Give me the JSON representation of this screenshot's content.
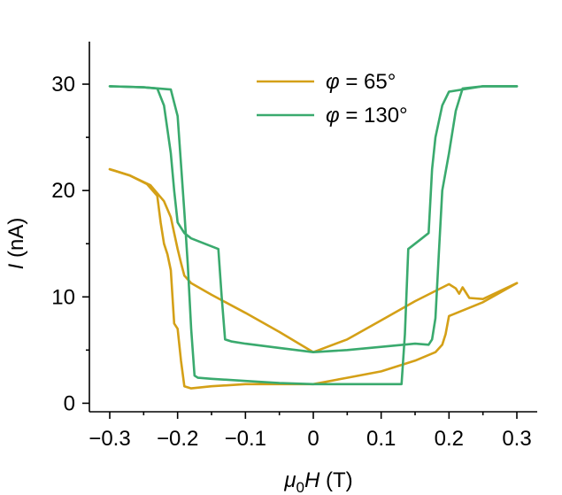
{
  "chart_data": {
    "type": "line",
    "xlabel": {
      "prefix": "μ",
      "sub": "0",
      "var": "H",
      "unit": " (T)"
    },
    "ylabel": {
      "var": "I",
      "unit": " (nA)"
    },
    "xlim": [
      -0.33,
      0.33
    ],
    "ylim": [
      -0.8,
      34
    ],
    "xticks": [
      -0.3,
      -0.2,
      -0.1,
      0,
      0.1,
      0.2,
      0.3
    ],
    "xtick_labels": [
      "−0.3",
      "−0.2",
      "−0.1",
      "0",
      "0.1",
      "0.2",
      "0.3"
    ],
    "yticks": [
      0,
      10,
      20,
      30
    ],
    "ytick_labels": [
      "0",
      "10",
      "20",
      "30"
    ],
    "legend_position": "top-right",
    "series": [
      {
        "name": "φ = 65°",
        "legend": {
          "phi": "φ",
          "rest": " = 65°"
        },
        "color": "#d4a017",
        "sweeps": [
          [
            [
              -0.3,
              22.0
            ],
            [
              -0.27,
              21.4
            ],
            [
              -0.24,
              20.5
            ],
            [
              -0.22,
              19.0
            ],
            [
              -0.21,
              17.5
            ],
            [
              -0.205,
              16.0
            ],
            [
              -0.2,
              14.5
            ],
            [
              -0.195,
              13.2
            ],
            [
              -0.19,
              12.0
            ],
            [
              -0.18,
              11.3
            ],
            [
              -0.15,
              10.2
            ],
            [
              -0.1,
              8.5
            ],
            [
              -0.05,
              6.7
            ],
            [
              0.0,
              4.8
            ],
            [
              0.05,
              6.0
            ],
            [
              0.1,
              7.8
            ],
            [
              0.15,
              9.6
            ],
            [
              0.2,
              11.2
            ],
            [
              0.21,
              10.8
            ],
            [
              0.215,
              10.3
            ],
            [
              0.22,
              10.9
            ],
            [
              0.23,
              9.9
            ],
            [
              0.25,
              9.8
            ],
            [
              0.27,
              10.4
            ],
            [
              0.3,
              11.3
            ]
          ],
          [
            [
              -0.3,
              22.0
            ],
            [
              -0.27,
              21.4
            ],
            [
              -0.245,
              20.6
            ],
            [
              -0.23,
              19.5
            ],
            [
              -0.225,
              17.0
            ],
            [
              -0.22,
              15.0
            ],
            [
              -0.215,
              14.0
            ],
            [
              -0.21,
              12.5
            ],
            [
              -0.205,
              7.5
            ],
            [
              -0.2,
              7.0
            ],
            [
              -0.195,
              4.0
            ],
            [
              -0.19,
              1.6
            ],
            [
              -0.18,
              1.4
            ],
            [
              -0.15,
              1.6
            ],
            [
              -0.1,
              1.8
            ],
            [
              -0.05,
              1.8
            ],
            [
              0.0,
              1.8
            ],
            [
              0.05,
              2.4
            ],
            [
              0.1,
              3.0
            ],
            [
              0.15,
              4.0
            ],
            [
              0.18,
              4.8
            ],
            [
              0.19,
              5.5
            ],
            [
              0.195,
              6.5
            ],
            [
              0.2,
              8.2
            ],
            [
              0.25,
              9.5
            ],
            [
              0.3,
              11.3
            ]
          ]
        ]
      },
      {
        "name": "φ = 130°",
        "legend": {
          "phi": "φ",
          "rest": " = 130°"
        },
        "color": "#3aaa6e",
        "sweeps": [
          [
            [
              -0.3,
              29.8
            ],
            [
              -0.25,
              29.7
            ],
            [
              -0.21,
              29.5
            ],
            [
              -0.2,
              27.0
            ],
            [
              -0.19,
              18.0
            ],
            [
              -0.185,
              13.0
            ],
            [
              -0.18,
              7.0
            ],
            [
              -0.175,
              2.6
            ],
            [
              -0.17,
              2.4
            ],
            [
              -0.15,
              2.3
            ],
            [
              -0.1,
              2.1
            ],
            [
              -0.05,
              1.9
            ],
            [
              0.0,
              1.8
            ],
            [
              0.05,
              1.8
            ],
            [
              0.1,
              1.8
            ],
            [
              0.13,
              1.8
            ],
            [
              0.135,
              6.5
            ],
            [
              0.14,
              14.5
            ],
            [
              0.16,
              15.5
            ],
            [
              0.17,
              16.0
            ],
            [
              0.175,
              22.0
            ],
            [
              0.18,
              25.0
            ],
            [
              0.19,
              28.0
            ],
            [
              0.2,
              29.3
            ],
            [
              0.25,
              29.8
            ],
            [
              0.3,
              29.8
            ]
          ],
          [
            [
              -0.3,
              29.8
            ],
            [
              -0.25,
              29.7
            ],
            [
              -0.23,
              29.6
            ],
            [
              -0.22,
              28.0
            ],
            [
              -0.21,
              23.5
            ],
            [
              -0.205,
              20.0
            ],
            [
              -0.2,
              17.0
            ],
            [
              -0.19,
              16.0
            ],
            [
              -0.18,
              15.5
            ],
            [
              -0.16,
              15.0
            ],
            [
              -0.14,
              14.5
            ],
            [
              -0.135,
              10.0
            ],
            [
              -0.13,
              6.0
            ],
            [
              -0.12,
              5.8
            ],
            [
              -0.1,
              5.6
            ],
            [
              -0.05,
              5.2
            ],
            [
              0.0,
              4.8
            ],
            [
              0.05,
              5.0
            ],
            [
              0.1,
              5.3
            ],
            [
              0.15,
              5.6
            ],
            [
              0.17,
              5.5
            ],
            [
              0.175,
              6.0
            ],
            [
              0.18,
              8.0
            ],
            [
              0.185,
              14.0
            ],
            [
              0.19,
              20.0
            ],
            [
              0.2,
              23.5
            ],
            [
              0.21,
              27.5
            ],
            [
              0.22,
              29.6
            ],
            [
              0.25,
              29.8
            ],
            [
              0.3,
              29.8
            ]
          ]
        ]
      }
    ]
  }
}
